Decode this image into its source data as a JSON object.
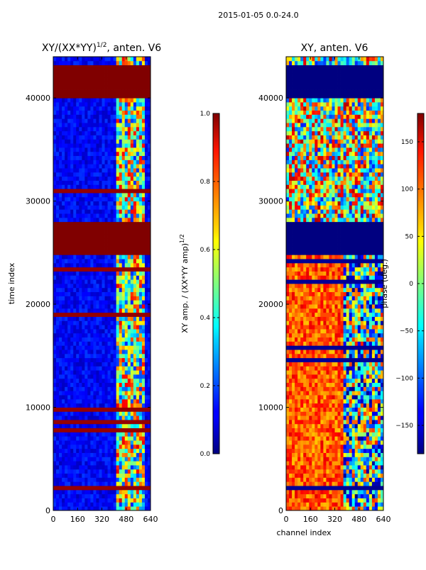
{
  "chart_data": {
    "type": "heatmap",
    "suptitle": "2015-01-05 0.0-24.0",
    "xlabel": "channel index",
    "ylabel": "time index",
    "colormap": "jet",
    "x_ticks": [
      0,
      160,
      320,
      480,
      640
    ],
    "x_tick_labels": [
      "0",
      "160",
      "320",
      "480",
      "640"
    ],
    "y_ticks": [
      0,
      10000,
      20000,
      30000,
      40000
    ],
    "y_tick_labels": [
      "0",
      "10000",
      "20000",
      "30000",
      "40000"
    ],
    "xlim": [
      0,
      640
    ],
    "ylim": [
      0,
      44000
    ],
    "flagged_time_ranges": [
      [
        25000,
        27800
      ],
      [
        40000,
        43000
      ]
    ],
    "panels": [
      {
        "title_prefix": "XY/(XX*YY)",
        "title_superscript": "1/2",
        "title_suffix": ", anten. V6",
        "colorbar_label_prefix": "XY amp. / (XX*YY amp)",
        "colorbar_label_superscript": "1/2",
        "clim": [
          0.0,
          1.0
        ],
        "colorbar_ticks": [
          0.0,
          0.2,
          0.4,
          0.6,
          0.8,
          1.0
        ],
        "colorbar_tick_labels": [
          "0.0",
          "0.2",
          "0.4",
          "0.6",
          "0.8",
          "1.0"
        ]
      },
      {
        "title_prefix": "XY, anten. V6",
        "title_superscript": "",
        "title_suffix": "",
        "colorbar_label_prefix": "phase (deg.)",
        "colorbar_label_superscript": "",
        "clim": [
          -180,
          180
        ],
        "colorbar_ticks": [
          -150,
          -100,
          -50,
          0,
          50,
          100,
          150
        ],
        "colorbar_tick_labels": [
          "−150",
          "−100",
          "−50",
          "0",
          "50",
          "100",
          "150"
        ]
      }
    ]
  }
}
